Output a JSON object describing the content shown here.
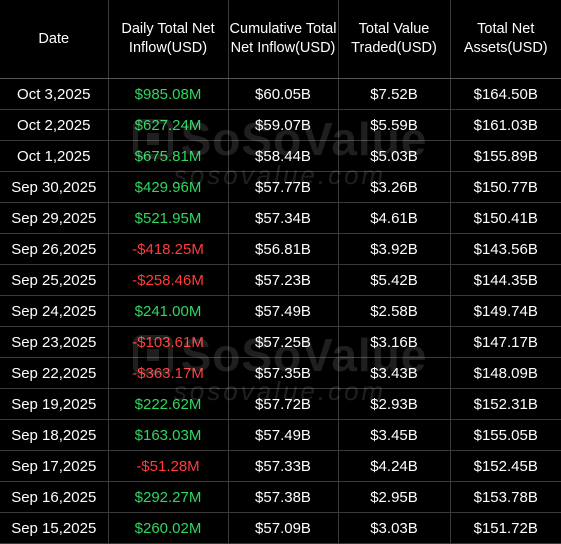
{
  "headers": {
    "date": "Date",
    "daily_inflow": "Daily Total Net Inflow(USD)",
    "cumulative_inflow": "Cumulative Total Net Inflow(USD)",
    "value_traded": "Total Value Traded(USD)",
    "net_assets": "Total Net Assets(USD)"
  },
  "watermark": {
    "brand": "SoSoValue",
    "site": "sosovalue.com"
  },
  "colors": {
    "positive": "#2fd65f",
    "negative": "#ff3b3b",
    "background": "#000000"
  },
  "rows": [
    {
      "date": "Oct 3,2025",
      "daily": "$985.08M",
      "sign": "pos",
      "cumulative": "$60.05B",
      "traded": "$7.52B",
      "assets": "$164.50B"
    },
    {
      "date": "Oct 2,2025",
      "daily": "$627.24M",
      "sign": "pos",
      "cumulative": "$59.07B",
      "traded": "$5.59B",
      "assets": "$161.03B"
    },
    {
      "date": "Oct 1,2025",
      "daily": "$675.81M",
      "sign": "pos",
      "cumulative": "$58.44B",
      "traded": "$5.03B",
      "assets": "$155.89B"
    },
    {
      "date": "Sep 30,2025",
      "daily": "$429.96M",
      "sign": "pos",
      "cumulative": "$57.77B",
      "traded": "$3.26B",
      "assets": "$150.77B"
    },
    {
      "date": "Sep 29,2025",
      "daily": "$521.95M",
      "sign": "pos",
      "cumulative": "$57.34B",
      "traded": "$4.61B",
      "assets": "$150.41B"
    },
    {
      "date": "Sep 26,2025",
      "daily": "-$418.25M",
      "sign": "neg",
      "cumulative": "$56.81B",
      "traded": "$3.92B",
      "assets": "$143.56B"
    },
    {
      "date": "Sep 25,2025",
      "daily": "-$258.46M",
      "sign": "neg",
      "cumulative": "$57.23B",
      "traded": "$5.42B",
      "assets": "$144.35B"
    },
    {
      "date": "Sep 24,2025",
      "daily": "$241.00M",
      "sign": "pos",
      "cumulative": "$57.49B",
      "traded": "$2.58B",
      "assets": "$149.74B"
    },
    {
      "date": "Sep 23,2025",
      "daily": "-$103.61M",
      "sign": "neg",
      "cumulative": "$57.25B",
      "traded": "$3.16B",
      "assets": "$147.17B"
    },
    {
      "date": "Sep 22,2025",
      "daily": "-$363.17M",
      "sign": "neg",
      "cumulative": "$57.35B",
      "traded": "$3.43B",
      "assets": "$148.09B"
    },
    {
      "date": "Sep 19,2025",
      "daily": "$222.62M",
      "sign": "pos",
      "cumulative": "$57.72B",
      "traded": "$2.93B",
      "assets": "$152.31B"
    },
    {
      "date": "Sep 18,2025",
      "daily": "$163.03M",
      "sign": "pos",
      "cumulative": "$57.49B",
      "traded": "$3.45B",
      "assets": "$155.05B"
    },
    {
      "date": "Sep 17,2025",
      "daily": "-$51.28M",
      "sign": "neg",
      "cumulative": "$57.33B",
      "traded": "$4.24B",
      "assets": "$152.45B"
    },
    {
      "date": "Sep 16,2025",
      "daily": "$292.27M",
      "sign": "pos",
      "cumulative": "$57.38B",
      "traded": "$2.95B",
      "assets": "$153.78B"
    },
    {
      "date": "Sep 15,2025",
      "daily": "$260.02M",
      "sign": "pos",
      "cumulative": "$57.09B",
      "traded": "$3.03B",
      "assets": "$151.72B"
    }
  ]
}
